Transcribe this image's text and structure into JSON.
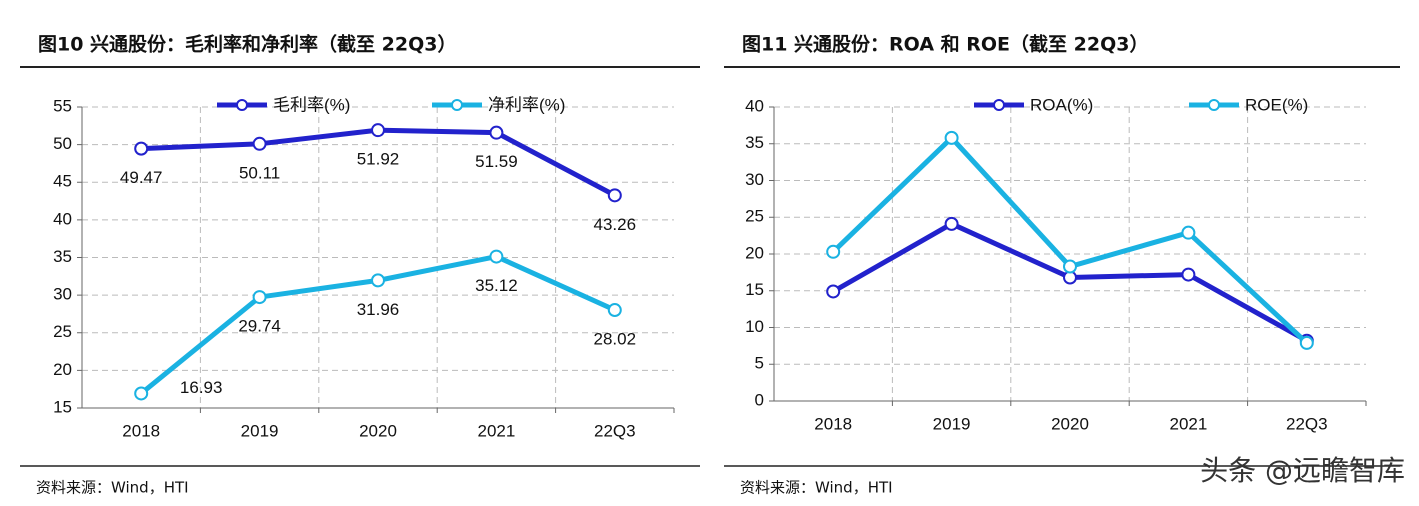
{
  "chart_data": [
    {
      "type": "line",
      "title": "图10  兴通股份：毛利率和净利率（截至 22Q3）",
      "categories": [
        "2018",
        "2019",
        "2020",
        "2021",
        "22Q3"
      ],
      "series": [
        {
          "name": "毛利率(%)",
          "color": "#2222cc",
          "values": [
            49.47,
            50.11,
            51.92,
            51.59,
            43.26
          ]
        },
        {
          "name": "净利率(%)",
          "color": "#1ab2e2",
          "values": [
            16.93,
            29.74,
            31.96,
            35.12,
            28.02
          ]
        }
      ],
      "ylim": [
        15,
        55
      ],
      "yticks": [
        15,
        20,
        25,
        30,
        35,
        40,
        45,
        50,
        55
      ],
      "grid": true,
      "data_labels": true,
      "legend": "top",
      "source": "资料来源：Wind，HTI"
    },
    {
      "type": "line",
      "title": "图11  兴通股份：ROA 和 ROE（截至 22Q3）",
      "categories": [
        "2018",
        "2019",
        "2020",
        "2021",
        "22Q3"
      ],
      "series": [
        {
          "name": "ROA(%)",
          "color": "#2222cc",
          "values": [
            14.9,
            24.1,
            16.8,
            17.2,
            8.2
          ]
        },
        {
          "name": "ROE(%)",
          "color": "#1ab2e2",
          "values": [
            20.3,
            35.8,
            18.3,
            22.9,
            7.9
          ]
        }
      ],
      "ylim": [
        0,
        40
      ],
      "yticks": [
        0,
        5,
        10,
        15,
        20,
        25,
        30,
        35,
        40
      ],
      "grid": true,
      "data_labels": false,
      "legend": "top",
      "source": "资料来源：Wind，HTI"
    }
  ],
  "watermark": "头条 @远瞻智库"
}
